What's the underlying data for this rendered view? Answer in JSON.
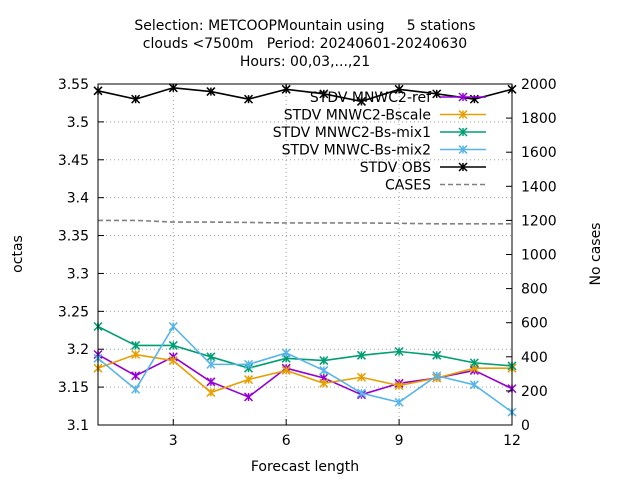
{
  "chart_data": {
    "type": "line",
    "title_lines": [
      "Selection: METCOOPMountain using     5 stations",
      "clouds <7500m   Period: 20240601-20240630",
      "Hours: 00,03,...,21"
    ],
    "xlabel": "Forecast length",
    "ylabel": "octas",
    "y2label": "No cases",
    "xlim": [
      1,
      12
    ],
    "ylim": [
      3.1,
      3.55
    ],
    "y2lim": [
      0,
      2000
    ],
    "x_ticks": [
      3,
      6,
      9,
      12
    ],
    "y_ticks": [
      "3.1",
      "3.15",
      "3.2",
      "3.25",
      "3.3",
      "3.35",
      "3.4",
      "3.45",
      "3.5",
      "3.55"
    ],
    "y2_ticks": [
      "0",
      "200",
      "400",
      "600",
      "800",
      "1000",
      "1200",
      "1400",
      "1600",
      "1800",
      "2000"
    ],
    "grid": true,
    "legend_position": "top-right",
    "x": [
      1,
      2,
      3,
      4,
      5,
      6,
      7,
      8,
      9,
      10,
      11,
      12
    ],
    "series": [
      {
        "name": "STDV MNWC2-ref",
        "color": "#9400d3",
        "marker": "x",
        "axis": "y",
        "values": [
          3.193,
          3.165,
          3.19,
          3.157,
          3.137,
          3.175,
          3.162,
          3.14,
          3.155,
          3.162,
          3.172,
          3.148
        ]
      },
      {
        "name": "STDV MNWC2-Bscale",
        "color": "#e69f00",
        "marker": "x",
        "axis": "y",
        "values": [
          3.175,
          3.193,
          3.185,
          3.143,
          3.16,
          3.172,
          3.155,
          3.163,
          3.152,
          3.162,
          3.175,
          3.175
        ]
      },
      {
        "name": "STDV MNWC2-Bs-mix1",
        "color": "#009e73",
        "marker": "x",
        "axis": "y",
        "values": [
          3.23,
          3.205,
          3.205,
          3.19,
          3.175,
          3.188,
          3.185,
          3.192,
          3.197,
          3.192,
          3.182,
          3.178
        ]
      },
      {
        "name": "STDV MNWC-Bs-mix2",
        "color": "#56b4e9",
        "marker": "x",
        "axis": "y",
        "values": [
          3.188,
          3.147,
          3.23,
          3.18,
          3.18,
          3.195,
          3.172,
          3.142,
          3.13,
          3.165,
          3.153,
          3.117
        ]
      },
      {
        "name": "STDV OBS",
        "color": "#000000",
        "marker": "x",
        "axis": "y",
        "values": [
          3.541,
          3.53,
          3.545,
          3.54,
          3.53,
          3.543,
          3.537,
          3.527,
          3.543,
          3.537,
          3.53,
          3.543
        ]
      },
      {
        "name": "CASES",
        "color": "#808080",
        "marker": "none",
        "dashed": true,
        "axis": "y2",
        "values": [
          1200,
          1200,
          1190,
          1190,
          1188,
          1185,
          1185,
          1185,
          1183,
          1180,
          1180,
          1180
        ]
      }
    ]
  }
}
